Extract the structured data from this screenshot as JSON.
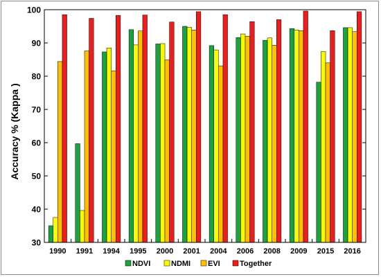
{
  "chart_data": {
    "type": "bar",
    "ylabel": "Accuracy % (Kappa )",
    "xlabel": "",
    "ylim": [
      30,
      100
    ],
    "yticks": [
      30,
      40,
      50,
      60,
      70,
      80,
      90,
      100
    ],
    "grid": false,
    "legend_position": "bottom",
    "categories": [
      "1990",
      "1991",
      "1994",
      "1995",
      "2000",
      "2001",
      "2004",
      "2006",
      "2008",
      "2009",
      "2015",
      "2016"
    ],
    "series": [
      {
        "name": "NDVI",
        "color": "#1aa340",
        "values": [
          35.0,
          59.7,
          87.3,
          94.0,
          89.7,
          95.0,
          89.2,
          91.6,
          90.8,
          94.3,
          78.2,
          94.6
        ]
      },
      {
        "name": "NDMI",
        "color": "#fafa00",
        "values": [
          37.5,
          39.6,
          88.5,
          89.4,
          89.8,
          94.7,
          87.9,
          92.7,
          91.5,
          93.9,
          87.4,
          94.6
        ]
      },
      {
        "name": "EVI",
        "color": "#ffc000",
        "values": [
          84.4,
          87.6,
          81.6,
          93.6,
          84.9,
          93.9,
          83.1,
          92.0,
          89.3,
          93.7,
          84.0,
          93.4
        ]
      },
      {
        "name": "Together",
        "color": "#ee1c1c",
        "values": [
          98.5,
          97.4,
          98.3,
          98.4,
          96.3,
          99.4,
          98.5,
          96.4,
          97.0,
          99.6,
          93.7,
          99.4
        ]
      }
    ]
  }
}
